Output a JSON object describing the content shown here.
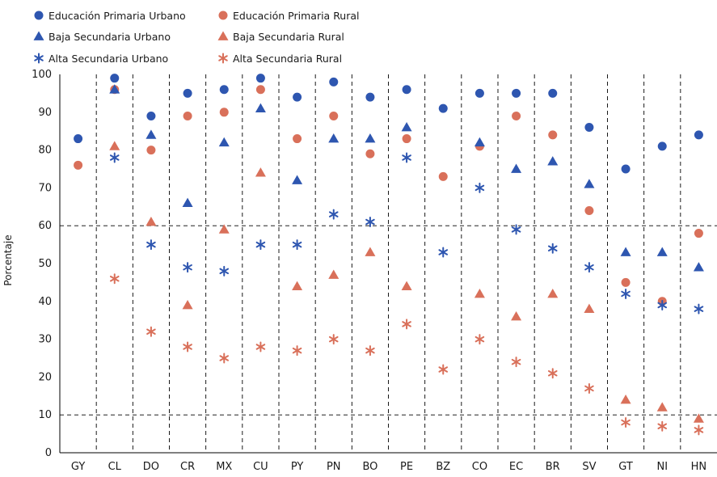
{
  "chart_data": {
    "type": "scatter",
    "ylabel": "Porcentaje",
    "xlabel": "",
    "ylim": [
      0,
      100
    ],
    "yticks": [
      0,
      10,
      20,
      30,
      40,
      50,
      60,
      70,
      80,
      90,
      100
    ],
    "categories": [
      "GY",
      "CL",
      "DO",
      "CR",
      "MX",
      "CU",
      "PY",
      "PN",
      "BO",
      "PE",
      "BZ",
      "CO",
      "EC",
      "BR",
      "SV",
      "GT",
      "NI",
      "HN"
    ],
    "reference_lines": [
      60,
      10
    ],
    "legend_position": "top-left",
    "series": [
      {
        "name": "Educación Primaria Urbano",
        "color": "#2e56b0",
        "marker": "circle",
        "values": [
          83,
          99,
          89,
          95,
          96,
          99,
          94,
          98,
          94,
          96,
          91,
          95,
          95,
          95,
          86,
          75,
          81,
          84
        ]
      },
      {
        "name": "Educación Primaria Rural",
        "color": "#d9705a",
        "marker": "circle",
        "values": [
          76,
          96,
          80,
          89,
          90,
          96,
          83,
          89,
          79,
          83,
          73,
          81,
          89,
          84,
          64,
          45,
          40,
          58
        ]
      },
      {
        "name": "Baja Secundaria Urbano",
        "color": "#2e56b0",
        "marker": "triangle",
        "values": [
          null,
          96,
          84,
          66,
          82,
          91,
          72,
          83,
          83,
          86,
          null,
          82,
          75,
          77,
          71,
          53,
          53,
          49
        ]
      },
      {
        "name": "Baja Secundaria Rural",
        "color": "#d9705a",
        "marker": "triangle",
        "values": [
          null,
          81,
          61,
          39,
          59,
          74,
          44,
          47,
          53,
          44,
          null,
          42,
          36,
          42,
          38,
          14,
          12,
          9
        ]
      },
      {
        "name": "Alta Secundaria Urbano",
        "color": "#2e56b0",
        "marker": "star",
        "values": [
          null,
          78,
          55,
          49,
          48,
          55,
          55,
          63,
          61,
          78,
          53,
          70,
          59,
          54,
          49,
          42,
          39,
          38
        ]
      },
      {
        "name": "Alta Secundaria Rural",
        "color": "#d9705a",
        "marker": "star",
        "values": [
          null,
          46,
          32,
          28,
          25,
          28,
          27,
          30,
          27,
          34,
          22,
          30,
          24,
          21,
          17,
          8,
          7,
          6
        ]
      }
    ]
  }
}
